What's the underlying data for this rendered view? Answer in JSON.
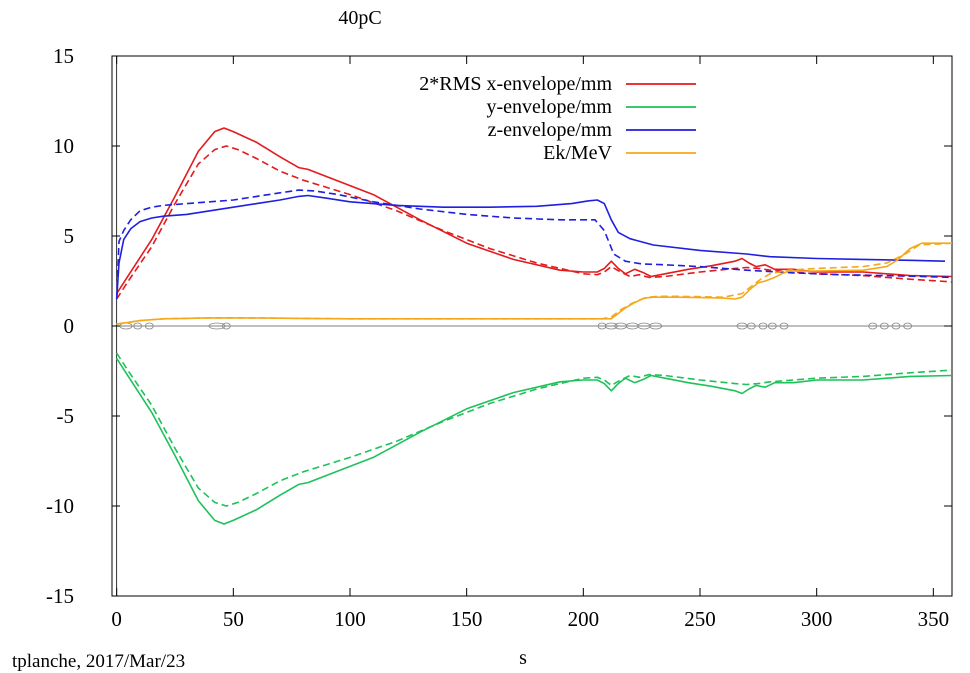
{
  "chart_data": {
    "type": "line",
    "title": "40pC",
    "xlabel": "s",
    "ylabel": "",
    "footer": "tplanche, 2017/Mar/23",
    "xlim": [
      -2,
      358
    ],
    "ylim": [
      -15,
      15
    ],
    "xticks": [
      0,
      50,
      100,
      150,
      200,
      250,
      300,
      350
    ],
    "xtick_labels": [
      "0",
      "50",
      "100",
      "150",
      "200",
      "250",
      "300",
      "350"
    ],
    "yticks": [
      15,
      10,
      5,
      0,
      -5,
      -10,
      -15
    ],
    "ytick_labels": [
      "15",
      "10",
      "5",
      "0",
      "-5",
      "-10",
      "-15"
    ],
    "grid": false,
    "legend_position": "top-right",
    "series": [
      {
        "name": "2*RMS x-envelope/mm",
        "color": "#e41a1c",
        "style": "solid",
        "x": [
          0,
          5,
          15,
          25,
          35,
          42,
          46,
          50,
          60,
          70,
          78,
          82,
          90,
          100,
          110,
          120,
          130,
          150,
          170,
          190,
          200,
          206,
          209,
          212,
          215,
          218,
          222,
          226,
          229,
          235,
          245,
          255,
          265,
          268,
          271,
          274,
          278,
          282,
          290,
          300,
          320,
          330,
          340,
          358
        ],
        "y": [
          1.8,
          2.8,
          4.8,
          7.2,
          9.7,
          10.8,
          11.0,
          10.8,
          10.2,
          9.4,
          8.8,
          8.7,
          8.3,
          7.8,
          7.3,
          6.6,
          5.9,
          4.6,
          3.7,
          3.1,
          3.0,
          3.0,
          3.2,
          3.6,
          3.2,
          2.9,
          3.15,
          2.95,
          2.75,
          2.9,
          3.15,
          3.35,
          3.6,
          3.75,
          3.5,
          3.3,
          3.4,
          3.15,
          3.15,
          3.0,
          3.0,
          2.9,
          2.8,
          2.75
        ]
      },
      {
        "name": "",
        "color": "#e41a1c",
        "style": "dashed",
        "x": [
          0,
          5,
          15,
          25,
          35,
          42,
          47,
          52,
          60,
          70,
          80,
          90,
          100,
          120,
          140,
          160,
          180,
          200,
          206,
          209,
          212,
          216,
          220,
          224,
          228,
          235,
          250,
          265,
          270,
          275,
          280,
          290,
          300,
          320,
          340,
          358
        ],
        "y": [
          1.5,
          2.5,
          4.4,
          6.8,
          9.0,
          9.8,
          10.0,
          9.8,
          9.3,
          8.6,
          8.1,
          7.7,
          7.3,
          6.4,
          5.3,
          4.3,
          3.5,
          2.9,
          2.85,
          3.0,
          3.3,
          3.0,
          2.75,
          2.85,
          2.7,
          2.75,
          3.0,
          3.2,
          3.25,
          3.2,
          3.1,
          3.0,
          2.9,
          2.8,
          2.6,
          2.45
        ]
      },
      {
        "name": "y-envelope/mm",
        "color": "#1fc15a",
        "style": "solid",
        "x": [
          0,
          5,
          15,
          25,
          35,
          42,
          46,
          50,
          60,
          70,
          78,
          82,
          90,
          100,
          110,
          120,
          130,
          150,
          170,
          190,
          200,
          206,
          209,
          212,
          215,
          218,
          222,
          226,
          229,
          235,
          245,
          255,
          265,
          268,
          271,
          274,
          278,
          282,
          290,
          300,
          320,
          330,
          340,
          358
        ],
        "y": [
          -1.8,
          -2.8,
          -4.8,
          -7.2,
          -9.7,
          -10.8,
          -11.0,
          -10.8,
          -10.2,
          -9.4,
          -8.8,
          -8.7,
          -8.3,
          -7.8,
          -7.3,
          -6.6,
          -5.9,
          -4.6,
          -3.7,
          -3.1,
          -3.0,
          -3.0,
          -3.2,
          -3.6,
          -3.2,
          -2.9,
          -3.15,
          -2.95,
          -2.75,
          -2.9,
          -3.15,
          -3.35,
          -3.6,
          -3.75,
          -3.5,
          -3.3,
          -3.4,
          -3.15,
          -3.15,
          -3.0,
          -3.0,
          -2.9,
          -2.8,
          -2.75
        ]
      },
      {
        "name": "",
        "color": "#1fc15a",
        "style": "dashed",
        "x": [
          0,
          5,
          15,
          25,
          35,
          42,
          47,
          52,
          60,
          70,
          80,
          90,
          100,
          120,
          140,
          160,
          180,
          200,
          206,
          209,
          212,
          216,
          220,
          224,
          228,
          235,
          250,
          265,
          270,
          275,
          280,
          290,
          300,
          320,
          340,
          358
        ],
        "y": [
          -1.5,
          -2.5,
          -4.4,
          -6.8,
          -9.0,
          -9.8,
          -10.0,
          -9.8,
          -9.3,
          -8.6,
          -8.1,
          -7.7,
          -7.3,
          -6.4,
          -5.3,
          -4.3,
          -3.5,
          -2.9,
          -2.85,
          -3.0,
          -3.3,
          -3.0,
          -2.75,
          -2.85,
          -2.7,
          -2.75,
          -3.0,
          -3.2,
          -3.25,
          -3.2,
          -3.1,
          -3.0,
          -2.9,
          -2.8,
          -2.6,
          -2.45
        ]
      },
      {
        "name": "z-envelope/mm",
        "color": "#1f1fe0",
        "style": "solid",
        "x": [
          0,
          1,
          3,
          6,
          10,
          15,
          20,
          30,
          40,
          50,
          60,
          70,
          78,
          82,
          90,
          100,
          120,
          140,
          160,
          180,
          195,
          202,
          206,
          209,
          212,
          215,
          220,
          230,
          250,
          270,
          280,
          300,
          320,
          340,
          355
        ],
        "y": [
          1.5,
          3.5,
          4.8,
          5.4,
          5.8,
          6.0,
          6.1,
          6.2,
          6.4,
          6.6,
          6.8,
          7.0,
          7.2,
          7.25,
          7.1,
          6.9,
          6.7,
          6.6,
          6.6,
          6.65,
          6.8,
          6.95,
          7.0,
          6.8,
          5.9,
          5.2,
          4.85,
          4.5,
          4.2,
          4.0,
          3.85,
          3.75,
          3.7,
          3.65,
          3.6
        ]
      },
      {
        "name": "",
        "color": "#1f1fe0",
        "style": "dashed",
        "x": [
          0,
          1,
          3,
          6,
          10,
          15,
          20,
          30,
          40,
          50,
          60,
          70,
          78,
          85,
          95,
          110,
          130,
          150,
          170,
          190,
          205,
          209,
          213,
          218,
          225,
          235,
          250,
          270,
          290,
          310,
          330,
          345,
          358
        ],
        "y": [
          1.5,
          4.7,
          5.3,
          5.9,
          6.4,
          6.6,
          6.7,
          6.8,
          6.9,
          7.0,
          7.2,
          7.4,
          7.55,
          7.5,
          7.3,
          6.9,
          6.5,
          6.2,
          6.0,
          5.9,
          5.9,
          5.3,
          4.0,
          3.6,
          3.45,
          3.4,
          3.3,
          3.1,
          2.95,
          2.85,
          2.8,
          2.75,
          2.7
        ]
      },
      {
        "name": "Ek/MeV",
        "color": "#f5a81c",
        "style": "solid",
        "x": [
          0,
          2,
          5,
          10,
          20,
          40,
          60,
          80,
          100,
          150,
          200,
          208,
          212,
          215,
          218,
          222,
          226,
          230,
          240,
          250,
          260,
          265,
          268,
          272,
          275,
          278,
          282,
          285,
          288,
          300,
          320,
          330,
          335,
          340,
          345,
          358
        ],
        "y": [
          0.1,
          0.15,
          0.2,
          0.3,
          0.4,
          0.45,
          0.45,
          0.42,
          0.4,
          0.4,
          0.4,
          0.4,
          0.4,
          0.7,
          1.0,
          1.3,
          1.55,
          1.6,
          1.6,
          1.58,
          1.55,
          1.5,
          1.6,
          2.1,
          2.4,
          2.5,
          2.7,
          2.9,
          3.05,
          3.05,
          3.1,
          3.3,
          3.7,
          4.3,
          4.6,
          4.6
        ]
      },
      {
        "name": "",
        "color": "#f5a81c",
        "style": "dashed",
        "x": [
          0,
          2,
          5,
          10,
          20,
          40,
          60,
          80,
          100,
          150,
          200,
          208,
          212,
          216,
          220,
          224,
          228,
          232,
          240,
          250,
          260,
          268,
          272,
          276,
          280,
          284,
          288,
          300,
          320,
          330,
          338,
          344,
          358
        ],
        "y": [
          0.1,
          0.15,
          0.2,
          0.3,
          0.4,
          0.45,
          0.45,
          0.42,
          0.4,
          0.4,
          0.4,
          0.4,
          0.5,
          0.9,
          1.2,
          1.45,
          1.6,
          1.65,
          1.65,
          1.63,
          1.6,
          1.8,
          2.2,
          2.6,
          2.9,
          3.0,
          3.1,
          3.2,
          3.3,
          3.5,
          4.0,
          4.5,
          4.6
        ]
      }
    ]
  }
}
